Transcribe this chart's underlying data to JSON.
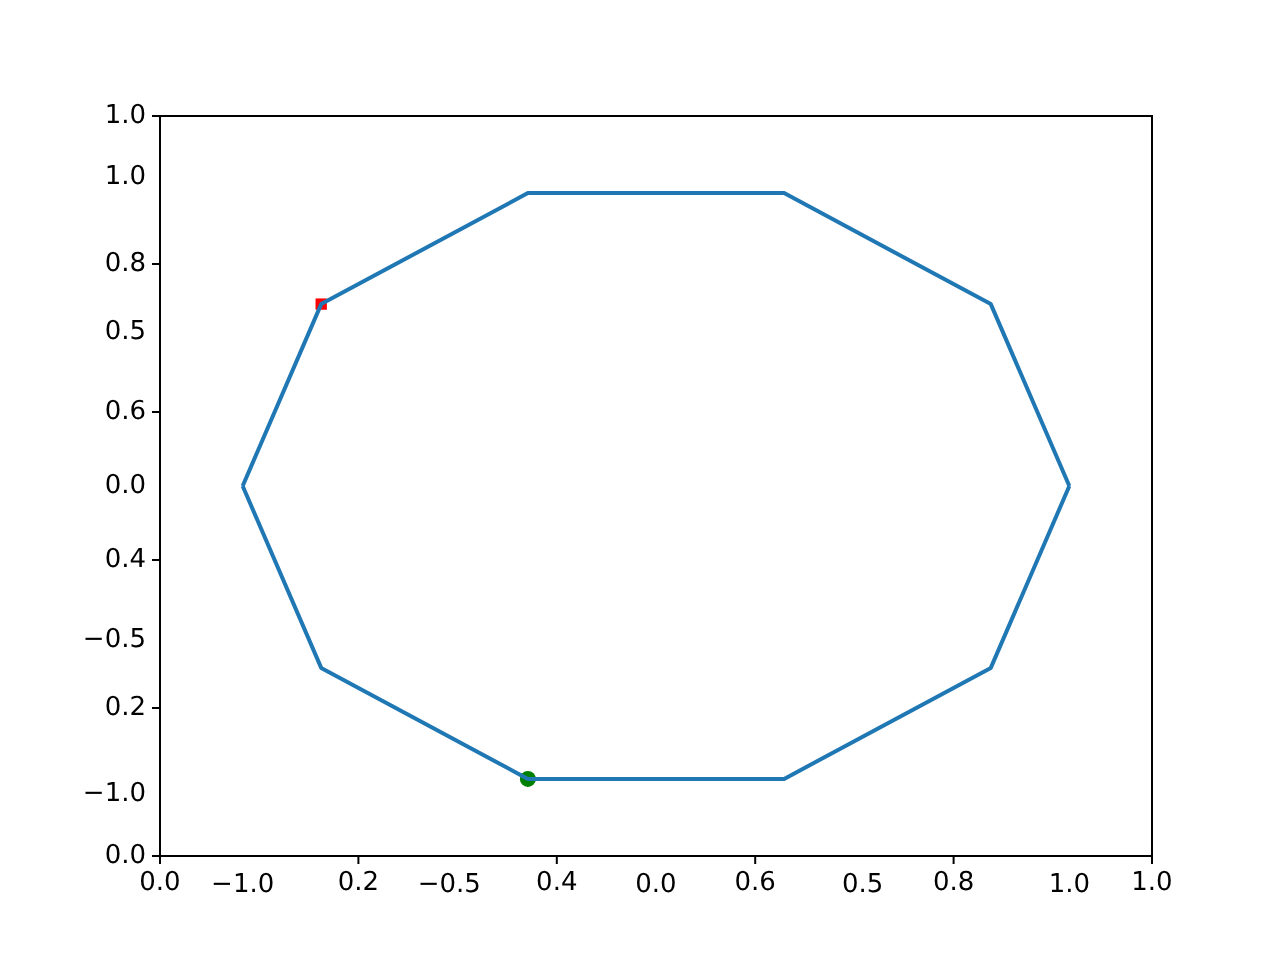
{
  "chart_data": {
    "type": "line",
    "xlim": [
      -1.2,
      1.2
    ],
    "xticks": [
      {
        "value": -1,
        "label": "−1.0"
      },
      {
        "value": -0.5,
        "label": "−0.5"
      },
      {
        "value": 0,
        "label": "0.0"
      },
      {
        "value": 0.5,
        "label": "0.5"
      },
      {
        "value": 1,
        "label": "1.0"
      }
    ],
    "ylim": [
      -1.2,
      1.2
    ],
    "yticks": [
      {
        "value": -1,
        "label": "−1.0"
      },
      {
        "value": -0.5,
        "label": "−0.5"
      },
      {
        "value": 0,
        "label": "0.0"
      },
      {
        "value": 0.5,
        "label": "0.5"
      },
      {
        "value": 1,
        "label": "1.0"
      }
    ],
    "x2lim": [
      0,
      1
    ],
    "x2ticks": [
      {
        "value": 0,
        "label": "0.0"
      },
      {
        "value": 0.2,
        "label": "0.2"
      },
      {
        "value": 0.4,
        "label": "0.4"
      },
      {
        "value": 0.6,
        "label": "0.6"
      },
      {
        "value": 0.8,
        "label": "0.8"
      },
      {
        "value": 1,
        "label": "1.0"
      }
    ],
    "y2lim": [
      0,
      1
    ],
    "y2ticks": [
      {
        "value": 0,
        "label": "0.0"
      },
      {
        "value": 0.2,
        "label": "0.2"
      },
      {
        "value": 0.4,
        "label": "0.4"
      },
      {
        "value": 0.6,
        "label": "0.6"
      },
      {
        "value": 0.8,
        "label": "0.8"
      },
      {
        "value": 1,
        "label": "1.0"
      }
    ],
    "series": [
      {
        "type": "line",
        "color": "#1f77b4",
        "marker": "none",
        "x": [
          1,
          0.81,
          0.31,
          -0.31,
          -0.81,
          -1
        ],
        "values": [
          0,
          0.59,
          0.95,
          0.95,
          0.59,
          0
        ]
      },
      {
        "type": "line",
        "color": "#1f77b4",
        "marker": "none",
        "x": [
          -1,
          -0.81,
          -0.31,
          0.31,
          0.81,
          1
        ],
        "values": [
          0,
          -0.59,
          -0.95,
          -0.95,
          -0.59,
          0
        ]
      },
      {
        "type": "scatter",
        "color": "#ff0000",
        "marker": "square",
        "x": [
          -0.81
        ],
        "values": [
          0.59
        ]
      },
      {
        "type": "scatter",
        "color": "#008000",
        "marker": "circle",
        "x": [
          -0.31
        ],
        "values": [
          -0.95
        ]
      }
    ]
  }
}
